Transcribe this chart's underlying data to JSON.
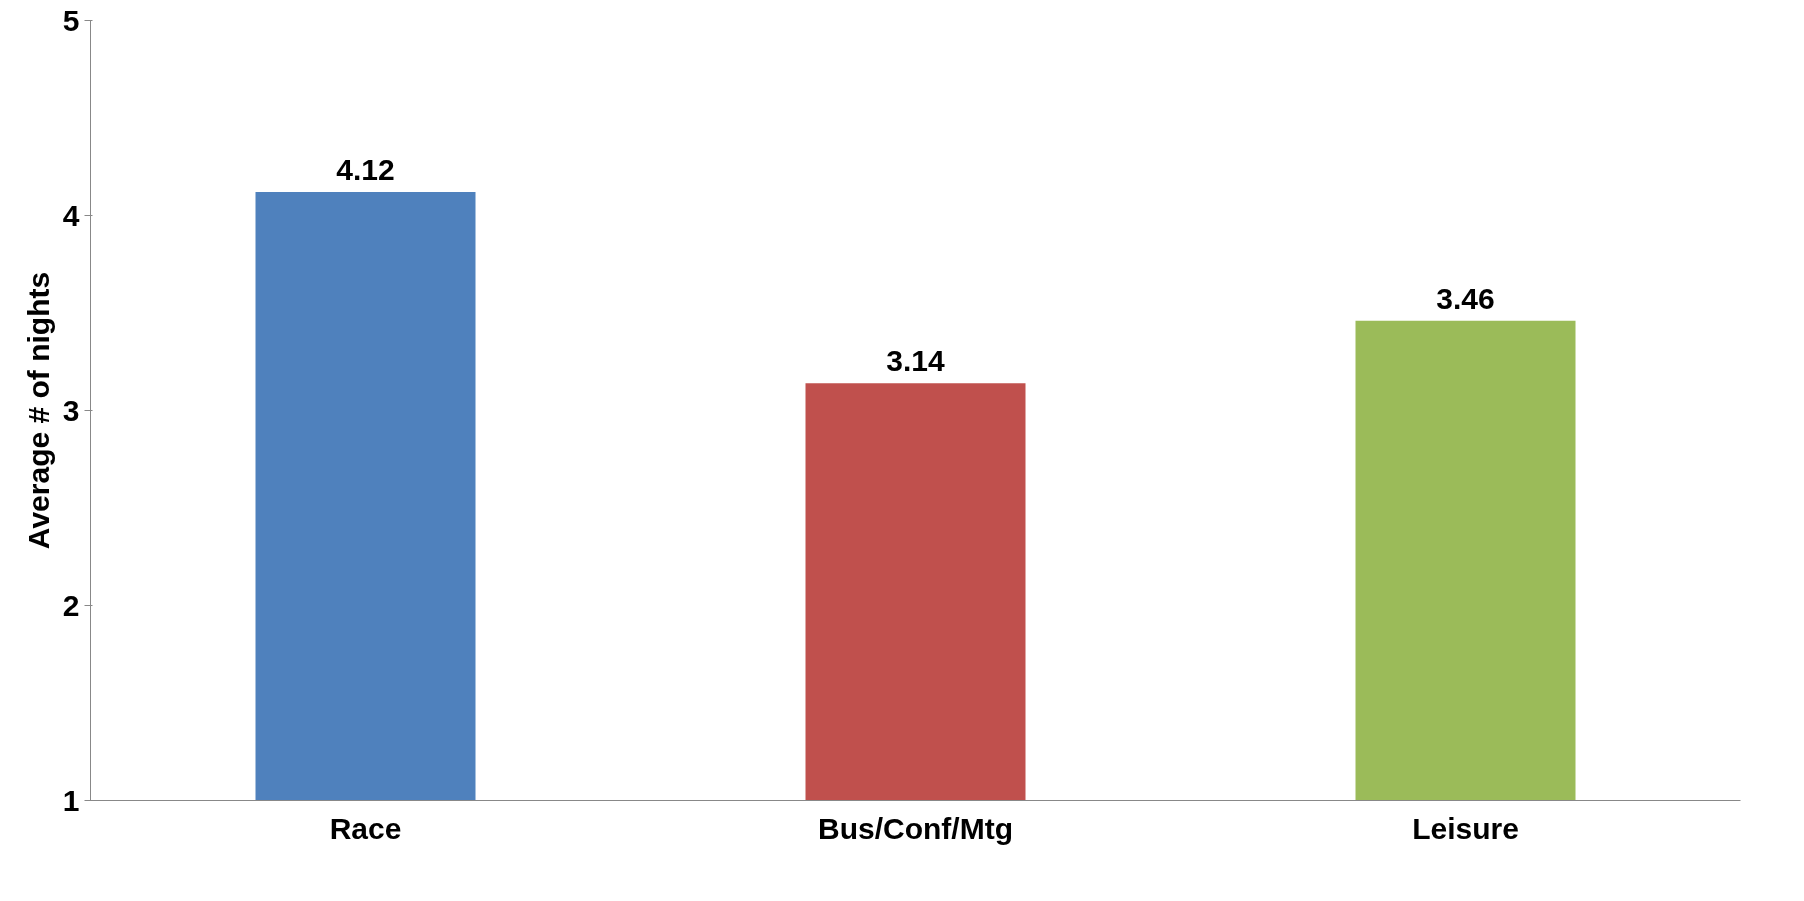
{
  "chart_data": {
    "type": "bar",
    "ylabel": "Average # of nights",
    "categories": [
      "Race",
      "Bus/Conf/Mtg",
      "Leisure"
    ],
    "values": [
      4.12,
      3.14,
      3.46
    ],
    "colors": [
      "#4f81bd",
      "#c0504d",
      "#9bbb59"
    ],
    "ylim": [
      1,
      5
    ],
    "yticks": [
      1,
      2,
      3,
      4,
      5
    ],
    "data_labels": true
  }
}
